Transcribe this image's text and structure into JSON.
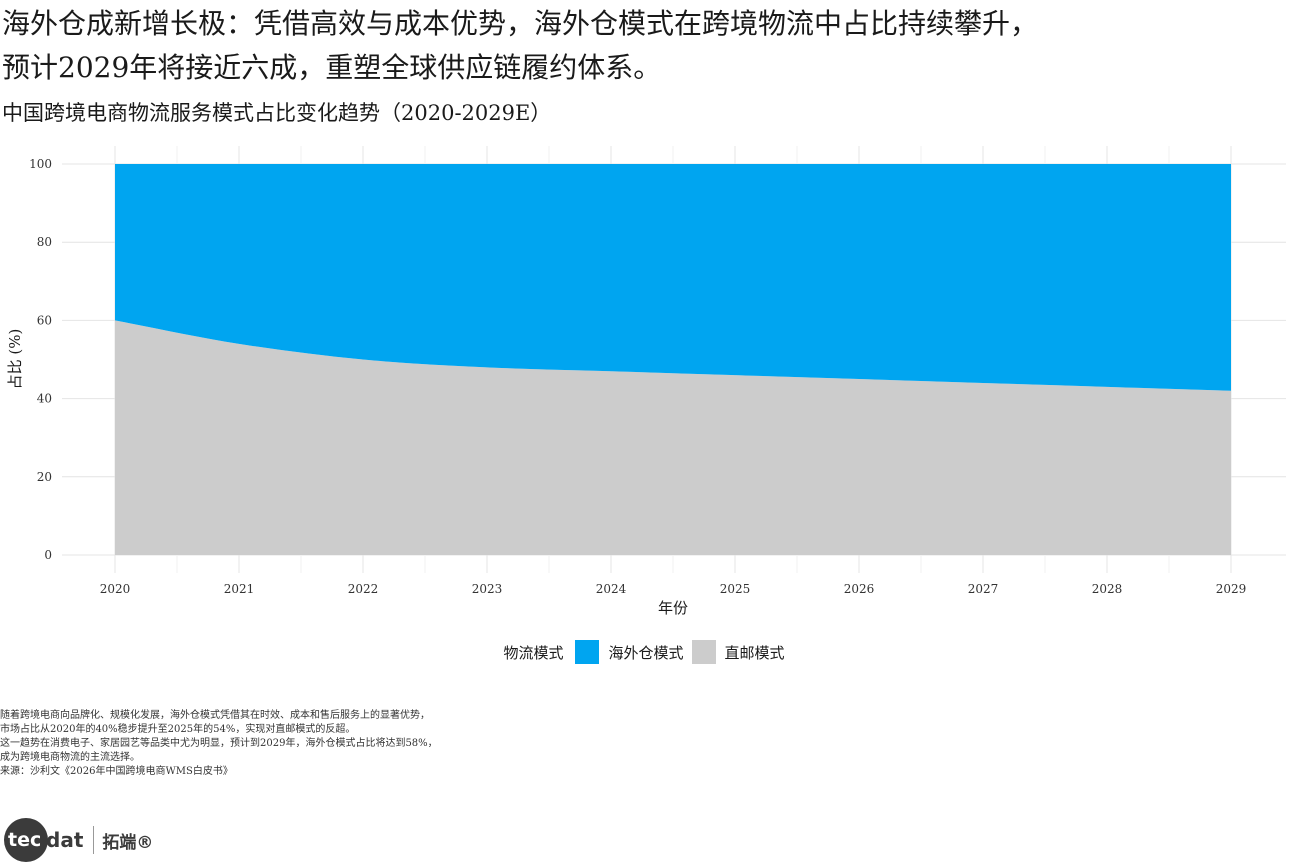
{
  "header": {
    "headline_line1": "海外仓成新增长极：凭借高效与成本优势，海外仓模式在跨境物流中占比持续攀升，",
    "headline_line2": "预计2029年将接近六成，重塑全球供应链履约体系。",
    "subtitle": "中国跨境电商物流服务模式占比变化趋势（2020-2029E）"
  },
  "chart_data": {
    "type": "area",
    "stacked": true,
    "x": [
      2020,
      2021,
      2022,
      2023,
      2024,
      2025,
      2026,
      2027,
      2028,
      2029
    ],
    "series": [
      {
        "name": "直邮模式",
        "color": "#cccccc",
        "values": [
          60,
          54,
          50,
          48,
          47,
          46,
          45,
          44,
          43,
          42
        ]
      },
      {
        "name": "海外仓模式",
        "color": "#00a5f0",
        "values": [
          40,
          46,
          50,
          52,
          53,
          54,
          55,
          56,
          57,
          58
        ]
      }
    ],
    "xlabel": "年份",
    "ylabel": "占比 (%)",
    "ylim": [
      0,
      100
    ],
    "yticks": [
      0,
      20,
      40,
      60,
      80,
      100
    ],
    "xticks": [
      "2020",
      "2021",
      "2022",
      "2023",
      "2024",
      "2025",
      "2026",
      "2027",
      "2028",
      "2029"
    ],
    "grid": true,
    "legend_position": "bottom"
  },
  "legend": {
    "title": "物流模式",
    "items": [
      {
        "label": "海外仓模式",
        "color": "#00a5f0"
      },
      {
        "label": "直邮模式",
        "color": "#cccccc"
      }
    ]
  },
  "notes": {
    "line1": "随着跨境电商向品牌化、规模化发展，海外仓模式凭借其在时效、成本和售后服务上的显著优势，",
    "line2": "市场占比从2020年的40%稳步提升至2025年的54%，实现对直邮模式的反超。",
    "line3": "这一趋势在消费电子、家居园艺等品类中尤为明显，预计到2029年，海外仓模式占比将达到58%，",
    "line4": "成为跨境电商物流的主流选择。",
    "source": "来源：沙利文《2026年中国跨境电商WMS白皮书》"
  },
  "logo": {
    "badge_text": "tec",
    "rest_text": "dat",
    "cn_text": "拓端®"
  }
}
